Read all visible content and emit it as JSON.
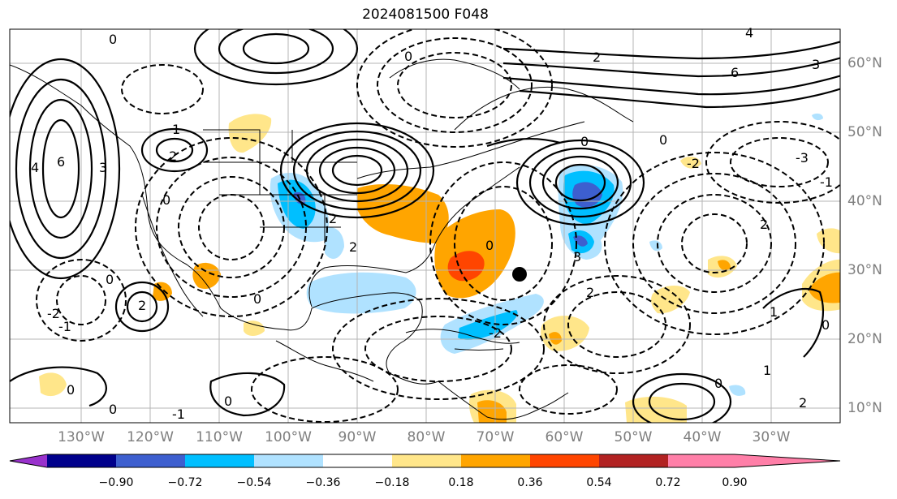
{
  "title": "2024081500 F048",
  "lon_labels": [
    "130°W",
    "120°W",
    "110°W",
    "100°W",
    "90°W",
    "80°W",
    "70°W",
    "60°W",
    "50°W",
    "40°W",
    "30°W"
  ],
  "lat_labels": [
    "60°N",
    "50°N",
    "40°N",
    "30°N",
    "20°N",
    "10°N"
  ],
  "colorbar": {
    "ticks": [
      "−0.90",
      "−0.72",
      "−0.54",
      "−0.36",
      "−0.18",
      "0.18",
      "0.36",
      "0.54",
      "0.72",
      "0.90"
    ],
    "colors": [
      "#9932cc",
      "#00008b",
      "#3d5fcf",
      "#00bfff",
      "#b0e2ff",
      "#ffffff",
      "#ffe68a",
      "#ffa500",
      "#ff4500",
      "#b22222",
      "#ff7fa8"
    ]
  },
  "contour_labels": [
    "0",
    "1",
    "2",
    "3",
    "4",
    "6",
    "-1",
    "-2",
    "-3"
  ]
}
